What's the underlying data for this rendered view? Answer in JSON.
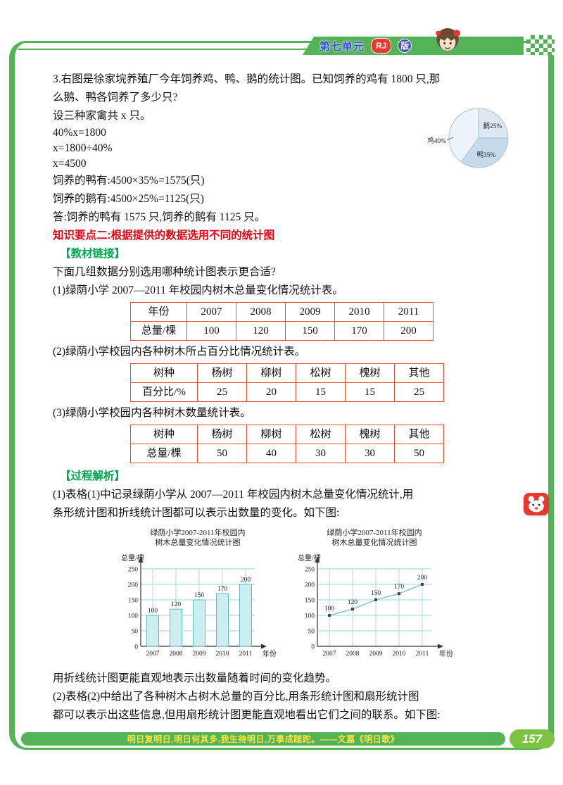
{
  "header": {
    "unit_label": "第七单元",
    "edition_rj": "RJ",
    "edition_ban": "版"
  },
  "problem": {
    "line1": "3.右图是徐家垸养殖厂今年饲养鸡、鸭、鹅的统计图。已知饲养的鸡有 1800 只,那",
    "line2": "么鹅、鸭各饲养了多少只?",
    "setup": "设三种家禽共 x 只。",
    "eq1": "40%x=1800",
    "eq2": "x=1800÷40%",
    "eq3": "x=4500",
    "duck": "饲养的鸭有:4500×35%=1575(只)",
    "goose": "饲养的鹅有:4500×25%=1125(只)",
    "answer": "答:饲养的鸭有 1575 只,饲养的鹅有 1125 只。"
  },
  "keypoint": "知识要点二:根据提供的数据选用不同的统计图",
  "textbook_link": {
    "heading": "【教材链接】",
    "question": "下面几组数据分别选用哪种统计图表示更合适?",
    "items": [
      "(1)绿荫小学 2007—2011 年校园内树木总量变化情况统计表。",
      "(2)绿荫小学校园内各种树木所占百分比情况统计表。",
      "(3)绿荫小学校园内各种树木数量统计表。"
    ]
  },
  "tables": [
    {
      "rows": [
        [
          "年份",
          "2007",
          "2008",
          "2009",
          "2010",
          "2011"
        ],
        [
          "总量/棵",
          "100",
          "120",
          "150",
          "170",
          "200"
        ]
      ]
    },
    {
      "rows": [
        [
          "树种",
          "杨树",
          "柳树",
          "松树",
          "槐树",
          "其他"
        ],
        [
          "百分比/%",
          "25",
          "20",
          "15",
          "15",
          "25"
        ]
      ]
    },
    {
      "rows": [
        [
          "树种",
          "杨树",
          "柳树",
          "松树",
          "槐树",
          "其他"
        ],
        [
          "总量/棵",
          "50",
          "40",
          "30",
          "30",
          "50"
        ]
      ]
    }
  ],
  "process": {
    "heading": "【过程解析】",
    "para1_line1": "(1)表格(1)中记录绿荫小学从 2007—2011 年校园内树木总量变化情况统计,用",
    "para1_line2": "条形统计图和折线统计图都可以表示出数量的变化。如下图:",
    "conclusion": "用折线统计图更能直观地表示出数量随着时间的变化趋势。",
    "para2_line1": "(2)表格(2)中给出了各种树木占树木总量的百分比,用条形统计图和扇形统计图",
    "para2_line2": "都可以表示出这些信息,但用扇形统计图更能直观地看出它们之间的联系。如下图:"
  },
  "footer": {
    "quote": "明日复明日,明日何其多,我生待明日,万事成蹉跎。——文嘉《明日歌》",
    "page_number": "157"
  },
  "chart_data": [
    {
      "type": "pie",
      "slices": [
        {
          "label": "鹅25%",
          "value": 25,
          "color": "#dde7f3"
        },
        {
          "label": "鸭35%",
          "value": 35,
          "color": "#c6daee"
        },
        {
          "label": "鸡40%",
          "value": 40,
          "color": "#ecf3fa"
        }
      ],
      "stroke_color": "#9bb8d4"
    },
    {
      "type": "bar",
      "title_lines": [
        "绿荫小学2007-2011年校园内",
        "树木总量变化情况统计图"
      ],
      "ylabel": "总量/棵",
      "xlabel": "年份",
      "categories": [
        "2007",
        "2008",
        "2009",
        "2010",
        "2011"
      ],
      "values": [
        100,
        120,
        150,
        170,
        200
      ],
      "ylim": [
        0,
        250
      ],
      "ytick_step": 50,
      "grid": true,
      "bar_color": "#cdeeee",
      "bar_border": "#5fbcbc",
      "grid_color": "#9ad8d8"
    },
    {
      "type": "line",
      "title_lines": [
        "绿荫小学2007-2011年校园内",
        "树木总量变化情况统计图"
      ],
      "ylabel": "总量/棵",
      "xlabel": "年份",
      "categories": [
        "2007",
        "2008",
        "2009",
        "2010",
        "2011"
      ],
      "values": [
        100,
        120,
        150,
        170,
        200
      ],
      "ylim": [
        0,
        250
      ],
      "ytick_step": 50,
      "grid": true,
      "line_color": "#8ac6c6",
      "marker_color": "#444444",
      "grid_color": "#9ad8d8"
    }
  ]
}
